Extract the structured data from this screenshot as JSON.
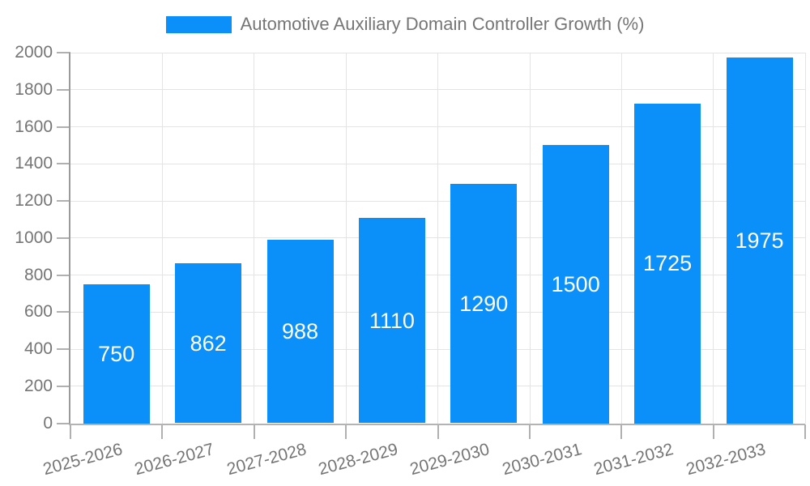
{
  "chart_data": {
    "type": "bar",
    "title": "Automotive Auxiliary Domain Controller Growth (%)",
    "categories": [
      "2025-2026",
      "2026-2027",
      "2027-2028",
      "2028-2029",
      "2029-2030",
      "2030-2031",
      "2031-2032",
      "2032-2033"
    ],
    "values": [
      750,
      862,
      988,
      1110,
      1290,
      1500,
      1725,
      1975
    ],
    "y_ticks": [
      "0",
      "200",
      "400",
      "600",
      "800",
      "1000",
      "1200",
      "1400",
      "1600",
      "1800",
      "2000"
    ],
    "ylim": [
      0,
      2000
    ],
    "xlabel": "",
    "ylabel": "",
    "grid": true,
    "legend_position": "top-center",
    "bar_labels_inside": true,
    "colors": {
      "bar": "#0a90f8",
      "bar_label_text": "#ffffff",
      "axis_text": "#757575",
      "gridline": "#e4e4e4",
      "x_axis_line": "#b3b3b3",
      "y_axis_line": "#9a9a9a",
      "tick": "#b0b0b0",
      "background": "#ffffff"
    }
  },
  "legend": {
    "label": "Automotive Auxiliary Domain Controller Growth (%)"
  }
}
